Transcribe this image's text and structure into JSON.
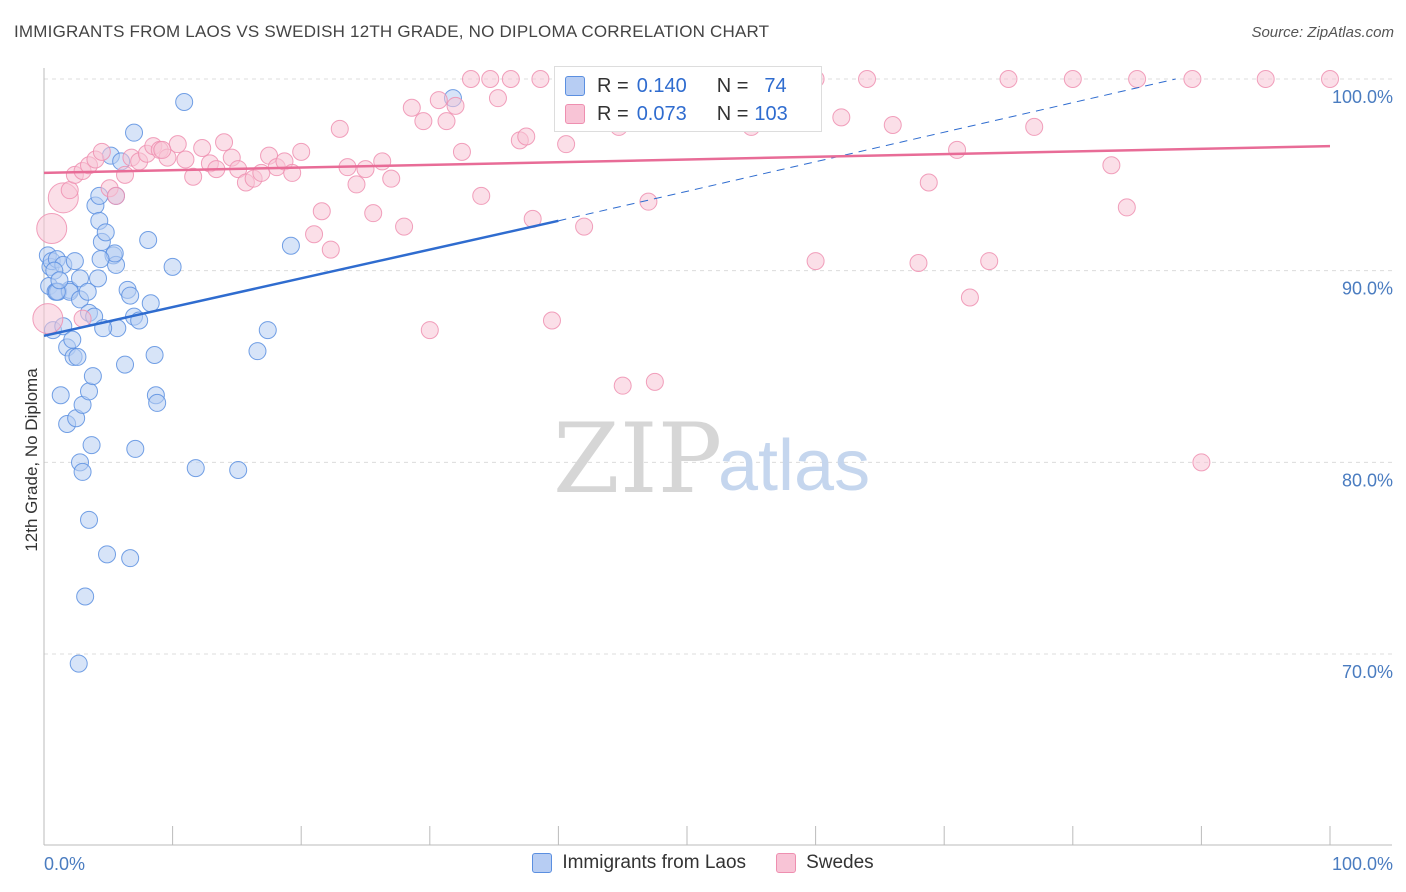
{
  "header": {
    "title": "IMMIGRANTS FROM LAOS VS SWEDISH 12TH GRADE, NO DIPLOMA CORRELATION CHART",
    "source": "Source: ZipAtlas.com"
  },
  "watermark": {
    "zip": "ZIP",
    "atlas": "atlas"
  },
  "stats": {
    "rows": [
      {
        "r_label": "R =",
        "r_value": "0.140",
        "n_label": "N =",
        "n_value": "74",
        "color": "#5b8fe0",
        "fill": "#b7cdf3"
      },
      {
        "r_label": "R =",
        "r_value": "0.073",
        "n_label": "N =",
        "n_value": "103",
        "color": "#ee8fb0",
        "fill": "#f8c4d6"
      }
    ]
  },
  "legend": {
    "items": [
      {
        "label": "Immigrants from Laos",
        "color": "#5b8fe0",
        "fill": "#b7cdf3"
      },
      {
        "label": "Swedes",
        "color": "#ee8fb0",
        "fill": "#f8c4d6"
      }
    ]
  },
  "chart_data": {
    "type": "scatter",
    "title": "IMMIGRANTS FROM LAOS VS SWEDISH 12TH GRADE, NO DIPLOMA CORRELATION CHART",
    "xlabel": "",
    "ylabel": "12th Grade, No Diploma",
    "xlim": [
      0,
      100
    ],
    "ylim": [
      60.5,
      101.5
    ],
    "x_ticks": [
      0,
      100
    ],
    "x_tick_labels": [
      "0.0%",
      "100.0%"
    ],
    "y_ticks": [
      70,
      80,
      90,
      100
    ],
    "y_tick_labels": [
      "70.0%",
      "80.0%",
      "90.0%",
      "100.0%"
    ],
    "grid": true,
    "legend_position": "bottom",
    "series": [
      {
        "name": "Immigrants from Laos",
        "color": "#5b8fe0",
        "fill": "#b7cdf3",
        "trend": {
          "x": [
            0,
            40
          ],
          "y": [
            86.6,
            92.6
          ],
          "dashed_x": [
            40,
            88
          ],
          "dashed_y": [
            92.6,
            100.0
          ],
          "color": "#2f6ccf"
        },
        "points": [
          [
            0.3,
            90.8
          ],
          [
            0.5,
            90.2
          ],
          [
            0.6,
            90.5
          ],
          [
            0.4,
            89.2
          ],
          [
            0.7,
            86.9
          ],
          [
            0.9,
            88.9
          ],
          [
            1.1,
            88.9
          ],
          [
            1.0,
            90.6
          ],
          [
            1.5,
            90.3
          ],
          [
            2.0,
            89.0
          ],
          [
            1.5,
            87.1
          ],
          [
            1.8,
            86.0
          ],
          [
            2.2,
            86.4
          ],
          [
            2.3,
            85.5
          ],
          [
            2.6,
            85.5
          ],
          [
            1.3,
            83.5
          ],
          [
            1.8,
            82.0
          ],
          [
            2.5,
            82.3
          ],
          [
            3.0,
            83.0
          ],
          [
            3.5,
            83.7
          ],
          [
            2.8,
            80.0
          ],
          [
            3.0,
            79.5
          ],
          [
            3.7,
            80.9
          ],
          [
            3.5,
            77.0
          ],
          [
            4.9,
            75.2
          ],
          [
            6.7,
            75.0
          ],
          [
            3.2,
            73.0
          ],
          [
            2.7,
            69.5
          ],
          [
            2.0,
            88.9
          ],
          [
            2.8,
            88.5
          ],
          [
            3.5,
            87.8
          ],
          [
            3.9,
            87.6
          ],
          [
            2.8,
            89.6
          ],
          [
            4.0,
            93.4
          ],
          [
            4.3,
            92.6
          ],
          [
            4.5,
            91.5
          ],
          [
            4.8,
            92.0
          ],
          [
            4.3,
            93.9
          ],
          [
            5.4,
            90.8
          ],
          [
            5.6,
            90.3
          ],
          [
            5.2,
            96.0
          ],
          [
            5.6,
            93.9
          ],
          [
            6.3,
            85.1
          ],
          [
            6.5,
            89.0
          ],
          [
            6.7,
            88.7
          ],
          [
            5.7,
            87.0
          ],
          [
            7.0,
            87.6
          ],
          [
            7.4,
            87.4
          ],
          [
            7.0,
            97.2
          ],
          [
            8.1,
            91.6
          ],
          [
            8.3,
            88.3
          ],
          [
            8.6,
            85.6
          ],
          [
            8.7,
            83.5
          ],
          [
            8.8,
            83.1
          ],
          [
            7.1,
            80.7
          ],
          [
            10.0,
            90.2
          ],
          [
            10.9,
            98.8
          ],
          [
            11.8,
            79.7
          ],
          [
            15.1,
            79.6
          ],
          [
            16.6,
            85.8
          ],
          [
            17.4,
            86.9
          ],
          [
            19.2,
            91.3
          ],
          [
            4.2,
            89.6
          ],
          [
            5.5,
            90.9
          ],
          [
            3.4,
            88.9
          ],
          [
            6.0,
            95.7
          ],
          [
            3.8,
            84.5
          ],
          [
            2.4,
            90.5
          ],
          [
            1.0,
            88.9
          ],
          [
            0.8,
            90.0
          ],
          [
            1.2,
            89.5
          ],
          [
            4.6,
            87.0
          ],
          [
            31.8,
            99.0
          ],
          [
            4.4,
            90.6
          ]
        ]
      },
      {
        "name": "Swedes",
        "color": "#ee8fb0",
        "fill": "#f8c4d6",
        "trend": {
          "x": [
            0,
            100
          ],
          "y": [
            95.1,
            96.5
          ],
          "color": "#e86c97"
        },
        "points": [
          [
            0.6,
            92.2
          ],
          [
            1.5,
            93.8
          ],
          [
            2.0,
            94.2
          ],
          [
            2.4,
            95.0
          ],
          [
            3.0,
            95.2
          ],
          [
            3.5,
            95.5
          ],
          [
            4.0,
            95.8
          ],
          [
            4.5,
            96.2
          ],
          [
            5.1,
            94.3
          ],
          [
            5.6,
            93.9
          ],
          [
            6.3,
            95.0
          ],
          [
            6.8,
            95.9
          ],
          [
            7.4,
            95.7
          ],
          [
            8.0,
            96.1
          ],
          [
            8.5,
            96.5
          ],
          [
            9.0,
            96.3
          ],
          [
            9.6,
            95.9
          ],
          [
            10.4,
            96.6
          ],
          [
            11.0,
            95.8
          ],
          [
            11.6,
            94.9
          ],
          [
            12.3,
            96.4
          ],
          [
            12.9,
            95.6
          ],
          [
            13.4,
            95.3
          ],
          [
            14.0,
            96.7
          ],
          [
            14.6,
            95.9
          ],
          [
            15.1,
            95.3
          ],
          [
            15.7,
            94.6
          ],
          [
            16.3,
            94.8
          ],
          [
            16.9,
            95.1
          ],
          [
            17.5,
            96.0
          ],
          [
            18.1,
            95.4
          ],
          [
            18.7,
            95.7
          ],
          [
            19.3,
            95.1
          ],
          [
            20.0,
            96.2
          ],
          [
            21.0,
            91.9
          ],
          [
            21.6,
            93.1
          ],
          [
            22.3,
            91.1
          ],
          [
            23.0,
            97.4
          ],
          [
            23.6,
            95.4
          ],
          [
            24.3,
            94.5
          ],
          [
            25.0,
            95.3
          ],
          [
            25.6,
            93.0
          ],
          [
            26.3,
            95.7
          ],
          [
            27.0,
            94.8
          ],
          [
            28.0,
            92.3
          ],
          [
            28.6,
            98.5
          ],
          [
            29.5,
            97.8
          ],
          [
            30.7,
            98.9
          ],
          [
            31.3,
            97.8
          ],
          [
            32.0,
            98.6
          ],
          [
            32.5,
            96.2
          ],
          [
            33.2,
            100.0
          ],
          [
            34.0,
            93.9
          ],
          [
            34.7,
            100.0
          ],
          [
            35.3,
            99.0
          ],
          [
            36.3,
            100.0
          ],
          [
            37.0,
            96.8
          ],
          [
            37.5,
            97.0
          ],
          [
            38.0,
            92.7
          ],
          [
            38.6,
            100.0
          ],
          [
            39.5,
            87.4
          ],
          [
            40.6,
            96.6
          ],
          [
            41.0,
            100.0
          ],
          [
            42.0,
            92.3
          ],
          [
            43.0,
            99.0
          ],
          [
            43.5,
            100.0
          ],
          [
            44.7,
            97.5
          ],
          [
            46.0,
            100.0
          ],
          [
            47.0,
            93.6
          ],
          [
            48.0,
            100.0
          ],
          [
            49.8,
            100.0
          ],
          [
            50.6,
            99.0
          ],
          [
            52.0,
            100.0
          ],
          [
            54.0,
            100.0
          ],
          [
            56.0,
            99.0
          ],
          [
            58.0,
            100.0
          ],
          [
            60.0,
            100.0
          ],
          [
            62.0,
            98.0
          ],
          [
            64.0,
            100.0
          ],
          [
            66.0,
            97.6
          ],
          [
            68.0,
            90.4
          ],
          [
            68.8,
            94.6
          ],
          [
            71.0,
            96.3
          ],
          [
            72.0,
            88.6
          ],
          [
            73.5,
            90.5
          ],
          [
            75.0,
            100.0
          ],
          [
            77.0,
            97.5
          ],
          [
            80.0,
            100.0
          ],
          [
            83.0,
            95.5
          ],
          [
            84.2,
            93.3
          ],
          [
            85.0,
            100.0
          ],
          [
            89.3,
            100.0
          ],
          [
            90.0,
            80.0
          ],
          [
            95.0,
            100.0
          ],
          [
            100.0,
            100.0
          ],
          [
            30.0,
            86.9
          ],
          [
            45.0,
            84.0
          ],
          [
            47.5,
            84.2
          ],
          [
            55.0,
            97.5
          ],
          [
            3.0,
            87.5
          ],
          [
            0.3,
            87.5
          ],
          [
            60.0,
            90.5
          ],
          [
            9.2,
            96.3
          ]
        ]
      }
    ]
  }
}
